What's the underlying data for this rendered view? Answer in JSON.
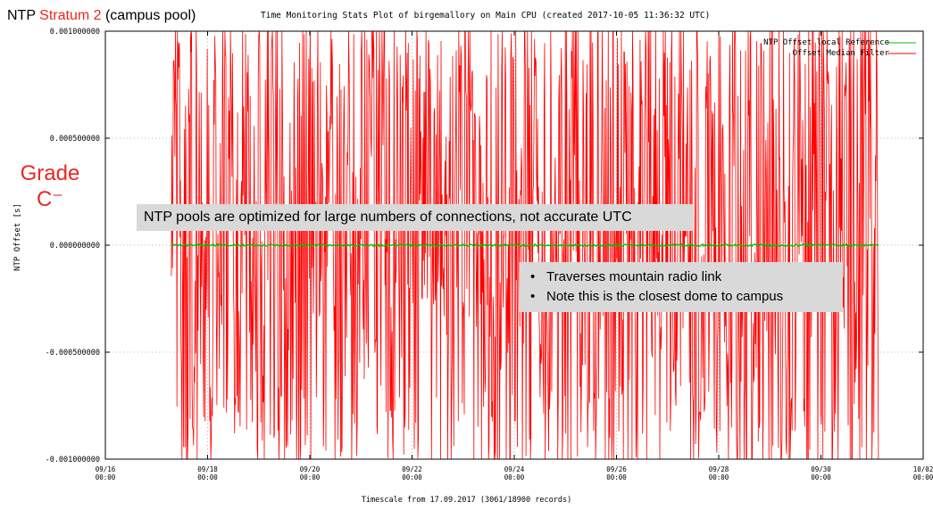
{
  "slide": {
    "title_prefix": "NTP ",
    "title_highlight": "Stratum 2",
    "title_suffix": " (campus pool)",
    "grade_line1": "Grade",
    "grade_line2": "C⁻",
    "callout_main": "NTP pools are optimized for large numbers of connections, not accurate UTC",
    "callout_bullets": [
      "Traverses mountain radio link",
      "Note this is the closest dome to campus"
    ]
  },
  "colors": {
    "accent_red": "#e8291f",
    "series_green": "#00c000",
    "series_red": "#ff0000",
    "callout_bg": "#d9d9d9",
    "grid": "#a0a0a0"
  },
  "chart_data": {
    "type": "line",
    "title": "Time Monitoring Stats Plot of birgemallory on Main CPU (created 2017-10-05 11:36:32 UTC)",
    "xlabel": "Timescale from 17.09.2017 (3061/18900 records)",
    "ylabel": "NTP Offset [s]",
    "ylim": [
      -0.001,
      0.001
    ],
    "y_ticks": [
      "0.001000000",
      "0.000500000",
      "0.000000000",
      "-0.000500000",
      "-0.001000000"
    ],
    "x_ticks": [
      {
        "date": "09/16",
        "time": "00:00"
      },
      {
        "date": "09/18",
        "time": "00:00"
      },
      {
        "date": "09/20",
        "time": "00:00"
      },
      {
        "date": "09/22",
        "time": "00:00"
      },
      {
        "date": "09/24",
        "time": "00:00"
      },
      {
        "date": "09/26",
        "time": "00:00"
      },
      {
        "date": "09/28",
        "time": "00:00"
      },
      {
        "date": "09/30",
        "time": "00:00"
      },
      {
        "date": "10/02",
        "time": "00:00"
      }
    ],
    "x_range_days": [
      "2017-09-16",
      "2017-10-02"
    ],
    "data_span": [
      "2017-09-17 07:00",
      "2017-10-01 03:00"
    ],
    "grid": true,
    "legend_position": "top-right",
    "series": [
      {
        "name": "NTP Offset local Reference",
        "color": "#00c000",
        "approx_level": 0.0,
        "approx_noise": 5e-06
      },
      {
        "name": "Offset Median Filter",
        "color": "#ff0000",
        "approx_range": [
          -0.001,
          0.001
        ]
      }
    ]
  }
}
